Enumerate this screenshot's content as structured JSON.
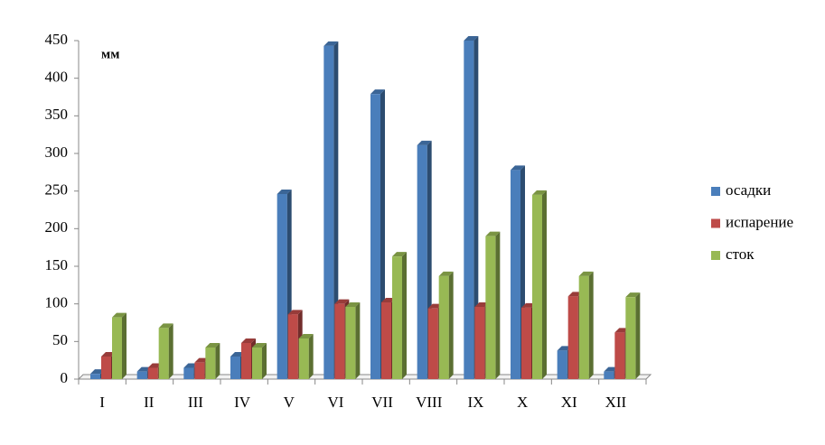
{
  "chart_data": {
    "type": "bar",
    "y_label": "мм",
    "categories": [
      "I",
      "II",
      "III",
      "IV",
      "V",
      "VI",
      "VII",
      "VIII",
      "IX",
      "X",
      "XI",
      "XII"
    ],
    "series": [
      {
        "name": "осадки",
        "color": "#4a7ebb",
        "values": [
          7,
          10,
          15,
          30,
          246,
          443,
          379,
          311,
          450,
          278,
          38,
          10
        ]
      },
      {
        "name": "испарение",
        "color": "#be4b48",
        "values": [
          30,
          15,
          22,
          48,
          86,
          100,
          102,
          94,
          96,
          95,
          110,
          62
        ]
      },
      {
        "name": "сток",
        "color": "#98b954",
        "values": [
          82,
          68,
          42,
          42,
          54,
          96,
          163,
          137,
          190,
          245,
          137,
          109
        ]
      }
    ],
    "ylim": [
      0,
      450
    ],
    "yticks": [
      0,
      50,
      100,
      150,
      200,
      250,
      300,
      350,
      400,
      450
    ],
    "legend": "right"
  }
}
